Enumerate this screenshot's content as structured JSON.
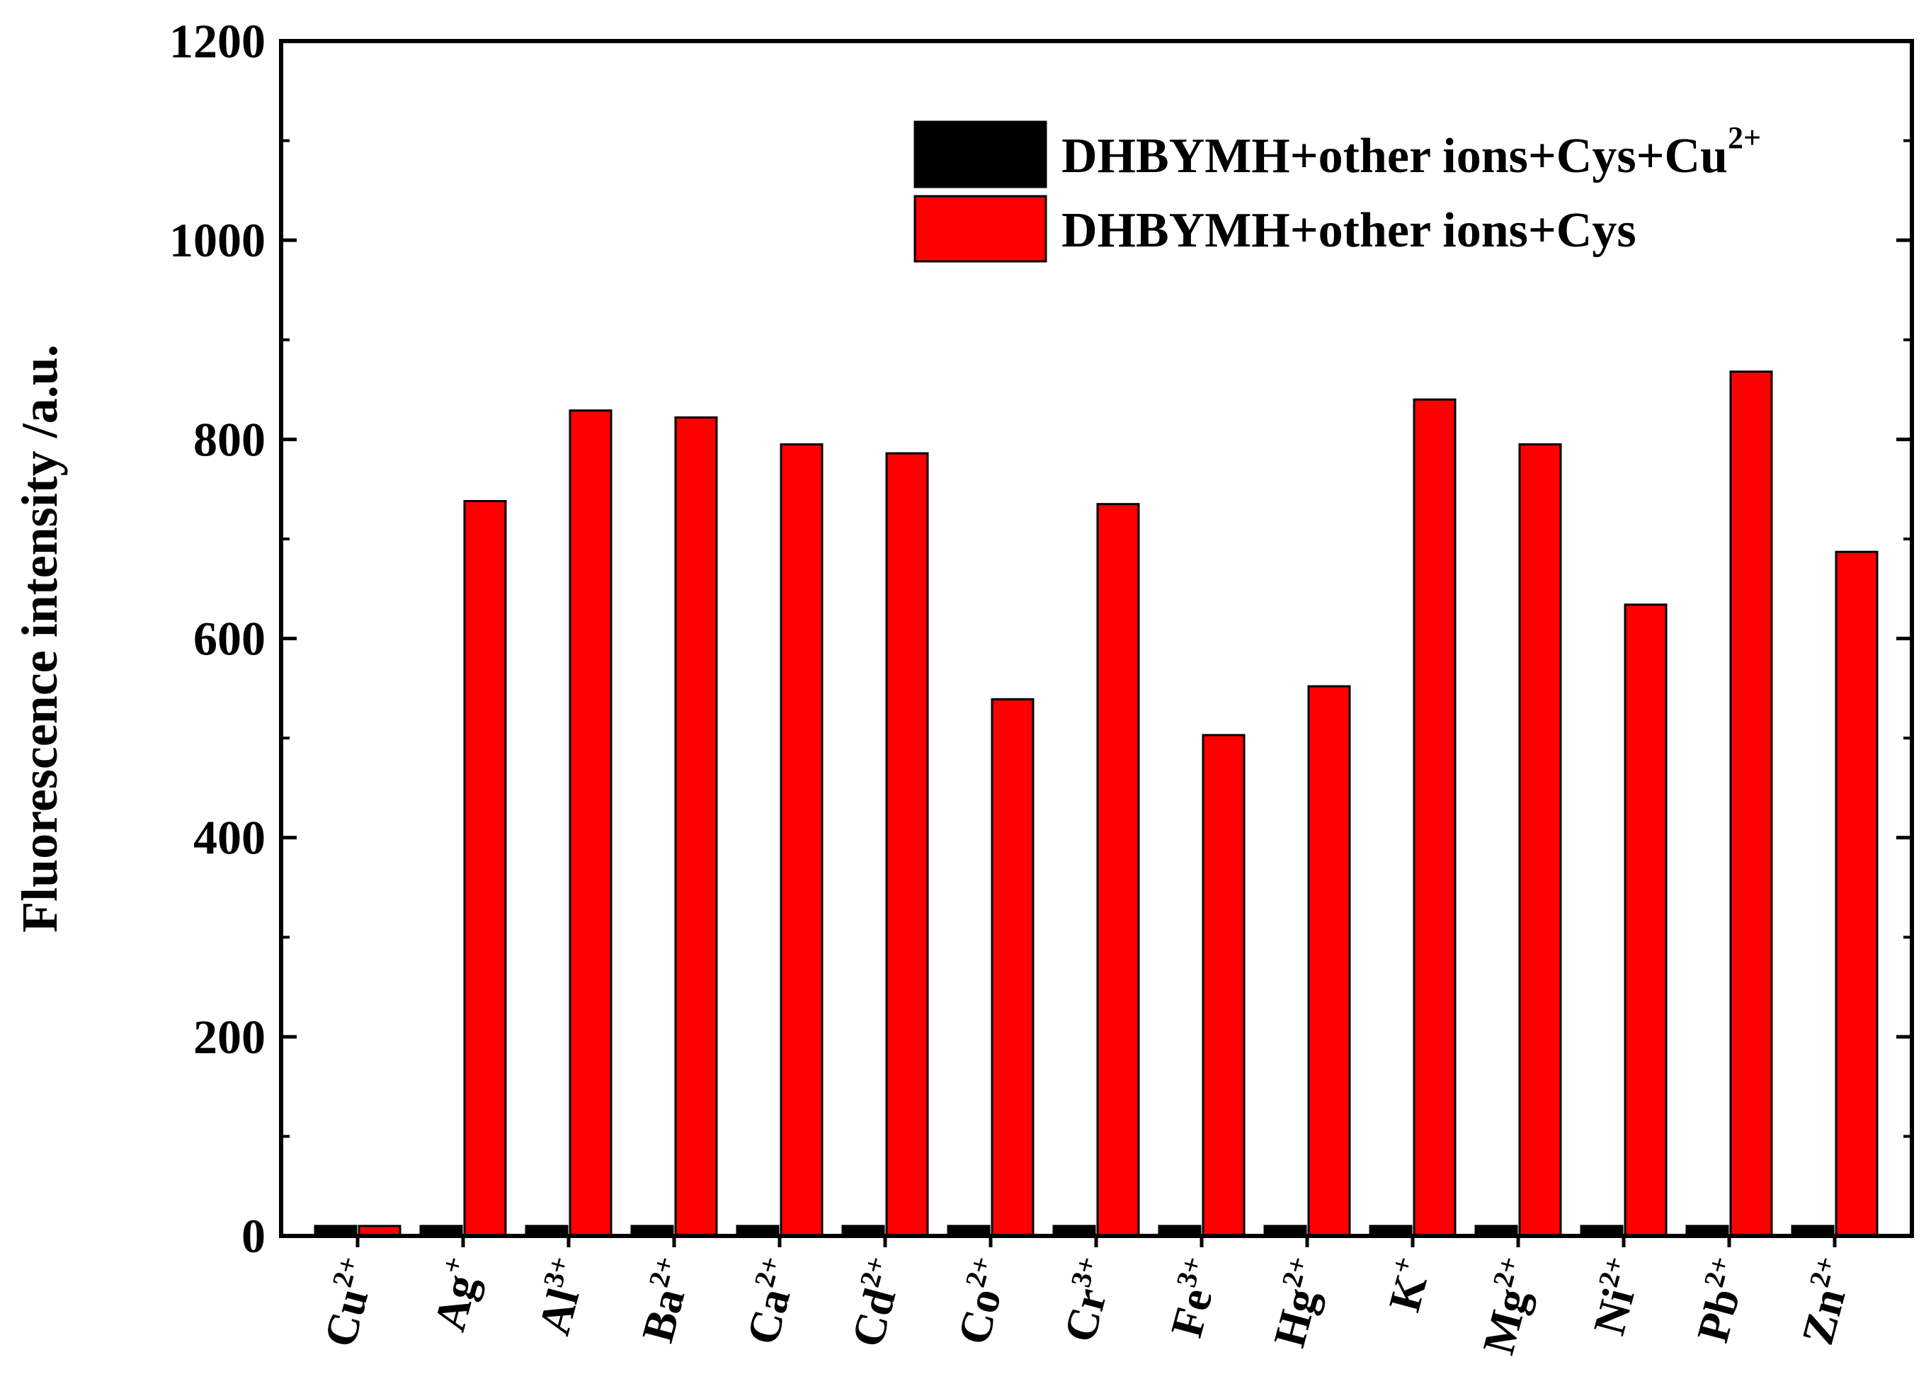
{
  "chart_data": {
    "type": "bar",
    "ylabel": "Fluorescence intensity /a.u.",
    "xlabel": "",
    "ylim": [
      0,
      1200
    ],
    "yticks": [
      0,
      200,
      400,
      600,
      800,
      1000,
      1200
    ],
    "grid": false,
    "legend_position": "top-right",
    "categories": [
      {
        "base": "Cu",
        "charge": "2+"
      },
      {
        "base": "Ag",
        "charge": "+"
      },
      {
        "base": "Al",
        "charge": "3+"
      },
      {
        "base": "Ba",
        "charge": "2+"
      },
      {
        "base": "Ca",
        "charge": "2+"
      },
      {
        "base": "Cd",
        "charge": "2+"
      },
      {
        "base": "Co",
        "charge": "2+"
      },
      {
        "base": "Cr",
        "charge": "3+"
      },
      {
        "base": "Fe",
        "charge": "3+"
      },
      {
        "base": "Hg",
        "charge": "2+"
      },
      {
        "base": "K",
        "charge": "+"
      },
      {
        "base": "Mg",
        "charge": "2+"
      },
      {
        "base": "Ni",
        "charge": "2+"
      },
      {
        "base": "Pb",
        "charge": "2+"
      },
      {
        "base": "Zn",
        "charge": "2+"
      }
    ],
    "series": [
      {
        "name_base": "DHBYMH+other ions+Cys+Cu",
        "name_sup": "2+",
        "color": "#000000",
        "values": [
          10,
          10,
          10,
          10,
          10,
          10,
          10,
          10,
          10,
          10,
          10,
          10,
          10,
          10,
          10
        ]
      },
      {
        "name_base": "DHBYMH+other ions+Cys",
        "name_sup": "",
        "color": "#ff0000",
        "values": [
          10,
          738,
          829,
          822,
          795,
          786,
          539,
          735,
          503,
          552,
          840,
          795,
          634,
          868,
          687
        ]
      }
    ]
  }
}
